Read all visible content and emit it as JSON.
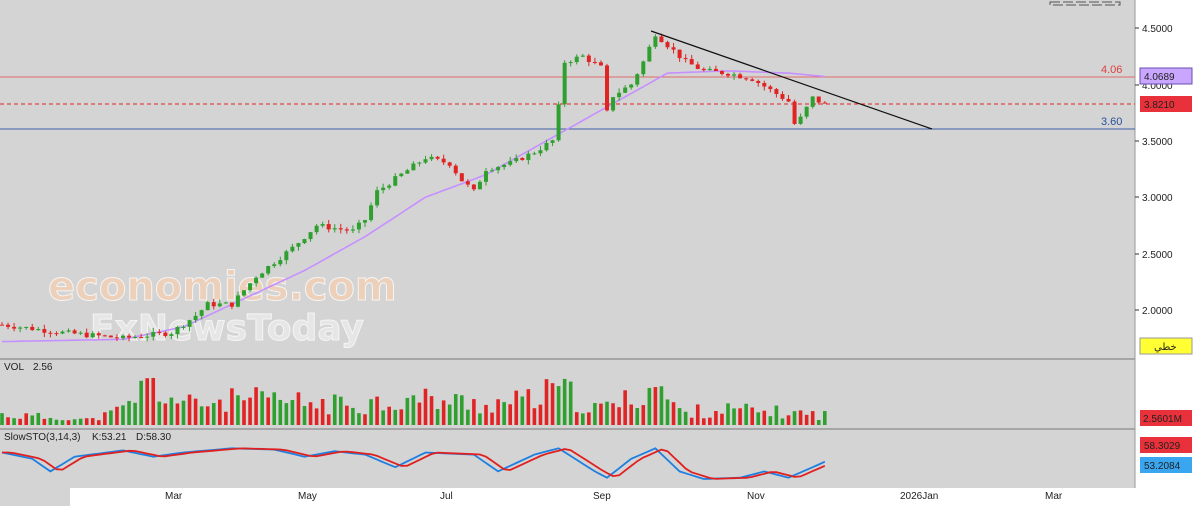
{
  "watermark": {
    "line1": "economies.com",
    "line2": "FxNewsToday"
  },
  "lines": {
    "resistance_label": "4.06",
    "support_label": "3.60",
    "resistance": 4.06,
    "support": 3.6
  },
  "price_tags": {
    "ma": "4.0689",
    "current": "3.8210",
    "tool": "خطي"
  },
  "volume": {
    "title": "VOL",
    "value": "2.56",
    "tag": "2.5601M"
  },
  "stoch": {
    "title": "SlowSTO(3,14,3)",
    "k_label": "K:53.21",
    "d_label": "D:58.30",
    "k_tag": "53.2084",
    "d_tag": "58.3029"
  },
  "colors": {
    "up": "#2fa02f",
    "down": "#e02424",
    "ma": "#c690ff",
    "resistance": "#e06a6a",
    "support": "#3f5fa8",
    "k_line": "#1e7fe0",
    "d_line": "#e02020",
    "tag_current": "#e8313a",
    "tag_ma": "#c9a6ff",
    "tag_tool": "#ffff33"
  },
  "chart_data": {
    "type": "candlestick",
    "y_ticks": [
      "4.5000",
      "4.0000",
      "3.5000",
      "3.0000",
      "2.5000",
      "2.0000"
    ],
    "ylim": [
      1.75,
      4.6
    ],
    "x_labels": [
      "Mar",
      "May",
      "Jul",
      "Sep",
      "Nov",
      "2026Jan",
      "Mar"
    ],
    "close_path": [
      [
        0,
        1.87
      ],
      [
        10,
        1.8
      ],
      [
        20,
        1.75
      ],
      [
        28,
        1.8
      ],
      [
        32,
        1.95
      ],
      [
        34,
        2.05
      ],
      [
        38,
        2.05
      ],
      [
        42,
        2.3
      ],
      [
        48,
        2.55
      ],
      [
        52,
        2.75
      ],
      [
        58,
        2.7
      ],
      [
        60,
        2.8
      ],
      [
        62,
        3.05
      ],
      [
        66,
        3.2
      ],
      [
        70,
        3.35
      ],
      [
        74,
        3.3
      ],
      [
        76,
        3.15
      ],
      [
        78,
        3.05
      ],
      [
        80,
        3.25
      ],
      [
        84,
        3.3
      ],
      [
        88,
        3.4
      ],
      [
        91,
        3.5
      ],
      [
        92,
        3.8
      ],
      [
        93,
        4.2
      ],
      [
        96,
        4.25
      ],
      [
        99,
        4.15
      ],
      [
        100,
        3.75
      ],
      [
        101,
        3.9
      ],
      [
        104,
        4.0
      ],
      [
        106,
        4.2
      ],
      [
        108,
        4.45
      ],
      [
        110,
        4.35
      ],
      [
        113,
        4.2
      ],
      [
        116,
        4.12
      ],
      [
        120,
        4.1
      ],
      [
        124,
        4.05
      ],
      [
        127,
        3.95
      ],
      [
        130,
        3.85
      ],
      [
        131,
        3.65
      ],
      [
        132,
        3.7
      ],
      [
        134,
        3.88
      ],
      [
        136,
        3.82
      ]
    ],
    "ma_path": [
      [
        0,
        1.72
      ],
      [
        20,
        1.74
      ],
      [
        30,
        1.85
      ],
      [
        40,
        2.1
      ],
      [
        50,
        2.35
      ],
      [
        60,
        2.65
      ],
      [
        70,
        3.0
      ],
      [
        80,
        3.2
      ],
      [
        90,
        3.5
      ],
      [
        100,
        3.8
      ],
      [
        110,
        4.1
      ],
      [
        120,
        4.12
      ],
      [
        130,
        4.1
      ],
      [
        136,
        4.07
      ]
    ],
    "trendline": [
      [
        4.47,
        4.47
      ],
      [
        150,
        3.6
      ]
    ],
    "volume_path": [
      [
        0,
        0.2
      ],
      [
        15,
        0.1
      ],
      [
        20,
        0.3
      ],
      [
        24,
        0.8
      ],
      [
        30,
        0.4
      ],
      [
        40,
        0.5
      ],
      [
        55,
        0.4
      ],
      [
        62,
        0.45
      ],
      [
        70,
        0.5
      ],
      [
        80,
        0.4
      ],
      [
        88,
        0.5
      ],
      [
        92,
        0.7
      ],
      [
        98,
        0.3
      ],
      [
        104,
        0.5
      ],
      [
        108,
        0.8
      ],
      [
        112,
        0.25
      ],
      [
        120,
        0.3
      ],
      [
        128,
        0.25
      ],
      [
        136,
        0.2
      ]
    ],
    "stoch_k_path": [
      [
        0,
        75
      ],
      [
        5,
        60
      ],
      [
        8,
        30
      ],
      [
        12,
        65
      ],
      [
        20,
        80
      ],
      [
        25,
        65
      ],
      [
        30,
        75
      ],
      [
        38,
        85
      ],
      [
        45,
        82
      ],
      [
        50,
        65
      ],
      [
        55,
        78
      ],
      [
        60,
        70
      ],
      [
        65,
        40
      ],
      [
        70,
        75
      ],
      [
        78,
        70
      ],
      [
        82,
        30
      ],
      [
        88,
        70
      ],
      [
        92,
        85
      ],
      [
        98,
        30
      ],
      [
        100,
        15
      ],
      [
        104,
        60
      ],
      [
        108,
        85
      ],
      [
        112,
        30
      ],
      [
        116,
        12
      ],
      [
        122,
        15
      ],
      [
        126,
        30
      ],
      [
        130,
        15
      ],
      [
        134,
        40
      ],
      [
        136,
        53
      ]
    ]
  }
}
